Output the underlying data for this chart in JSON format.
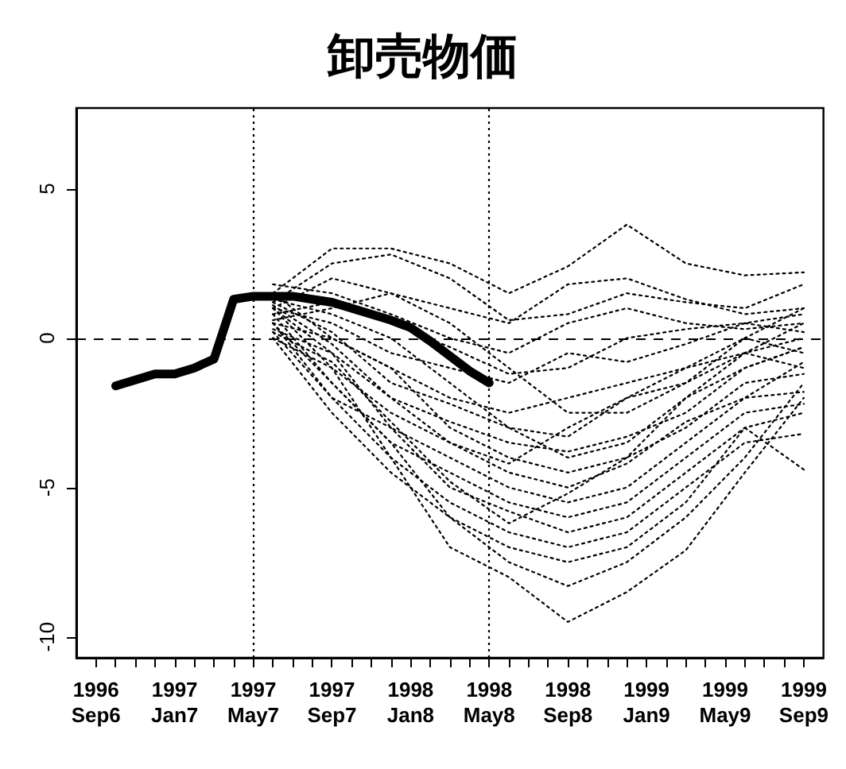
{
  "chart_data": {
    "type": "line",
    "title": "卸売物価",
    "line_style": "dotted",
    "marker": "none",
    "grid": false,
    "xlim": [
      "1996-08",
      "1999-10"
    ],
    "ylim": [
      -10.7,
      7.7
    ],
    "yticks": [
      -10,
      -5,
      0,
      5
    ],
    "xticks": [
      {
        "value": "1996-09",
        "label": "1996\nSep6"
      },
      {
        "value": "1996-10",
        "label": null
      },
      {
        "value": "1996-11",
        "label": null
      },
      {
        "value": "1996-12",
        "label": null
      },
      {
        "value": "1997-01",
        "label": "1997\nJan7"
      },
      {
        "value": "1997-02",
        "label": null
      },
      {
        "value": "1997-03",
        "label": null
      },
      {
        "value": "1997-04",
        "label": null
      },
      {
        "value": "1997-05",
        "label": "1997\nMay7"
      },
      {
        "value": "1997-06",
        "label": null
      },
      {
        "value": "1997-07",
        "label": null
      },
      {
        "value": "1997-08",
        "label": null
      },
      {
        "value": "1997-09",
        "label": "1997\nSep7"
      },
      {
        "value": "1997-10",
        "label": null
      },
      {
        "value": "1997-11",
        "label": null
      },
      {
        "value": "1997-12",
        "label": null
      },
      {
        "value": "1998-01",
        "label": "1998\nJan8"
      },
      {
        "value": "1998-02",
        "label": null
      },
      {
        "value": "1998-03",
        "label": null
      },
      {
        "value": "1998-04",
        "label": null
      },
      {
        "value": "1998-05",
        "label": "1998\nMay8"
      },
      {
        "value": "1998-06",
        "label": null
      },
      {
        "value": "1998-07",
        "label": null
      },
      {
        "value": "1998-08",
        "label": null
      },
      {
        "value": "1998-09",
        "label": "1998\nSep8"
      },
      {
        "value": "1998-10",
        "label": null
      },
      {
        "value": "1998-11",
        "label": null
      },
      {
        "value": "1998-12",
        "label": null
      },
      {
        "value": "1999-01",
        "label": "1999\nJan9"
      },
      {
        "value": "1999-02",
        "label": null
      },
      {
        "value": "1999-03",
        "label": null
      },
      {
        "value": "1999-04",
        "label": null
      },
      {
        "value": "1999-05",
        "label": "1999\nMay9"
      },
      {
        "value": "1999-06",
        "label": null
      },
      {
        "value": "1999-07",
        "label": null
      },
      {
        "value": "1999-08",
        "label": null
      },
      {
        "value": "1999-09",
        "label": "1999\nSep9"
      }
    ],
    "ref_lines": [
      {
        "axis": "x",
        "value": "1997-05",
        "line_style": "dotted"
      },
      {
        "axis": "x",
        "value": "1998-05",
        "line_style": "dotted"
      },
      {
        "axis": "y",
        "value": 0,
        "line_style": "dashed"
      }
    ],
    "series": [
      {
        "color": "#000000",
        "line_style": "solid",
        "x": [
          "1996-10",
          "1996-11",
          "1996-12",
          "1997-01",
          "1997-02",
          "1997-03",
          "1997-04",
          "1997-05",
          "1997-06",
          "1997-07",
          "1997-08",
          "1997-09",
          "1997-10",
          "1997-11",
          "1997-12",
          "1998-01",
          "1998-02",
          "1998-03",
          "1998-04",
          "1998-05"
        ],
        "values": [
          -1.6,
          -1.4,
          -1.2,
          -1.2,
          -1.0,
          -0.7,
          1.3,
          1.4,
          1.4,
          1.4,
          1.3,
          1.2,
          1.0,
          0.8,
          0.6,
          0.35,
          -0.1,
          -0.6,
          -1.1,
          -1.5
        ]
      },
      {
        "color": "#000000",
        "x": [
          "1997-06",
          "1997-09",
          "1997-12",
          "1998-03",
          "1998-06",
          "1998-09",
          "1998-12",
          "1999-03",
          "1999-06",
          "1999-09"
        ],
        "values": [
          1.5,
          3.0,
          3.0,
          2.5,
          1.5,
          2.4,
          3.8,
          2.5,
          2.1,
          2.2
        ]
      },
      {
        "color": "#000000",
        "x": [
          "1997-06",
          "1997-09",
          "1997-12",
          "1998-03",
          "1998-06",
          "1998-09",
          "1998-12",
          "1999-03",
          "1999-06",
          "1999-09"
        ],
        "values": [
          1.2,
          2.5,
          2.8,
          2.0,
          0.6,
          0.8,
          1.5,
          1.2,
          1.0,
          1.8
        ]
      },
      {
        "color": "#000000",
        "x": [
          "1997-06",
          "1997-09",
          "1997-12",
          "1998-03",
          "1998-06",
          "1998-09",
          "1998-12",
          "1999-03",
          "1999-06",
          "1999-09"
        ],
        "values": [
          1.0,
          2.0,
          1.5,
          1.0,
          0.5,
          1.8,
          2.0,
          1.3,
          0.8,
          1.0
        ]
      },
      {
        "color": "#000000",
        "x": [
          "1997-06",
          "1997-09",
          "1997-12",
          "1998-03",
          "1998-06",
          "1998-09",
          "1998-12",
          "1999-03",
          "1999-06",
          "1999-09"
        ],
        "values": [
          1.8,
          1.5,
          0.8,
          0.0,
          -0.5,
          0.5,
          1.0,
          0.5,
          0.3,
          0.5
        ]
      },
      {
        "color": "#000000",
        "x": [
          "1997-06",
          "1997-09",
          "1997-12",
          "1998-03",
          "1998-06",
          "1998-09",
          "1998-12",
          "1999-03",
          "1999-06",
          "1999-09"
        ],
        "values": [
          0.8,
          1.2,
          0.5,
          -0.3,
          -1.2,
          -1.0,
          0.0,
          0.3,
          0.5,
          0.2
        ]
      },
      {
        "color": "#000000",
        "x": [
          "1997-06",
          "1997-09",
          "1997-12",
          "1998-03",
          "1998-06",
          "1998-09",
          "1998-12",
          "1999-03",
          "1999-06",
          "1999-09"
        ],
        "values": [
          1.0,
          0.5,
          -0.5,
          -1.0,
          -1.5,
          -0.5,
          -0.8,
          -0.2,
          0.5,
          0.8
        ]
      },
      {
        "color": "#000000",
        "x": [
          "1997-06",
          "1997-09",
          "1997-12",
          "1998-03",
          "1998-06",
          "1998-09",
          "1998-12",
          "1999-03",
          "1999-06",
          "1999-09"
        ],
        "values": [
          0.5,
          0.0,
          -1.0,
          -2.0,
          -2.5,
          -2.0,
          -1.5,
          -1.0,
          0.0,
          -0.5
        ]
      },
      {
        "color": "#000000",
        "x": [
          "1997-06",
          "1997-09",
          "1997-12",
          "1998-03",
          "1998-06",
          "1998-09",
          "1998-12",
          "1999-03",
          "1999-06",
          "1999-09"
        ],
        "values": [
          1.2,
          0.2,
          -1.5,
          -2.2,
          -3.0,
          -3.3,
          -2.0,
          -1.5,
          -0.5,
          -1.0
        ]
      },
      {
        "color": "#000000",
        "x": [
          "1997-06",
          "1997-09",
          "1997-12",
          "1998-03",
          "1998-06",
          "1998-09",
          "1998-12",
          "1999-03",
          "1999-06",
          "1999-09"
        ],
        "values": [
          0.3,
          -0.5,
          -2.0,
          -2.8,
          -3.5,
          -3.8,
          -3.3,
          -2.5,
          -1.0,
          -0.3
        ]
      },
      {
        "color": "#000000",
        "x": [
          "1997-06",
          "1997-09",
          "1997-12",
          "1998-03",
          "1998-06",
          "1998-09",
          "1998-12",
          "1999-03",
          "1999-06",
          "1999-09"
        ],
        "values": [
          1.5,
          0.0,
          -1.0,
          -3.0,
          -4.0,
          -4.5,
          -4.0,
          -3.0,
          -1.5,
          -1.2
        ]
      },
      {
        "color": "#000000",
        "x": [
          "1997-06",
          "1997-09",
          "1997-12",
          "1998-03",
          "1998-06",
          "1998-09",
          "1998-12",
          "1999-03",
          "1999-06",
          "1999-09"
        ],
        "values": [
          0.0,
          -1.0,
          -2.5,
          -3.5,
          -4.5,
          -5.0,
          -4.2,
          -2.8,
          -2.0,
          -1.8
        ]
      },
      {
        "color": "#000000",
        "x": [
          "1997-06",
          "1997-09",
          "1997-12",
          "1998-03",
          "1998-06",
          "1998-09",
          "1998-12",
          "1999-03",
          "1999-06",
          "1999-09"
        ],
        "values": [
          1.0,
          -0.5,
          -3.0,
          -4.0,
          -5.0,
          -5.5,
          -5.0,
          -3.5,
          -2.0,
          -0.8
        ]
      },
      {
        "color": "#000000",
        "x": [
          "1997-06",
          "1997-09",
          "1997-12",
          "1998-03",
          "1998-06",
          "1998-09",
          "1998-12",
          "1999-03",
          "1999-06",
          "1999-09"
        ],
        "values": [
          0.5,
          -1.5,
          -3.5,
          -4.5,
          -5.5,
          -6.0,
          -5.5,
          -4.0,
          -2.5,
          -2.2
        ]
      },
      {
        "color": "#000000",
        "x": [
          "1997-06",
          "1997-09",
          "1997-12",
          "1998-03",
          "1998-06",
          "1998-09",
          "1998-12",
          "1999-03",
          "1999-06",
          "1999-09"
        ],
        "values": [
          0.2,
          -2.0,
          -3.0,
          -5.0,
          -5.8,
          -6.5,
          -6.0,
          -4.5,
          -3.0,
          -2.5
        ]
      },
      {
        "color": "#000000",
        "x": [
          "1997-06",
          "1997-09",
          "1997-12",
          "1998-03",
          "1998-06",
          "1998-09",
          "1998-12",
          "1999-03",
          "1999-06",
          "1999-09"
        ],
        "values": [
          1.0,
          -1.0,
          -4.0,
          -5.5,
          -6.5,
          -7.0,
          -6.5,
          -5.0,
          -3.5,
          -3.2
        ]
      },
      {
        "color": "#000000",
        "x": [
          "1997-06",
          "1997-09",
          "1997-12",
          "1998-03",
          "1998-06",
          "1998-09",
          "1998-12",
          "1999-03",
          "1999-06",
          "1999-09"
        ],
        "values": [
          0.0,
          -2.5,
          -4.5,
          -6.0,
          -7.0,
          -7.5,
          -7.0,
          -5.5,
          -3.0,
          -4.4
        ]
      },
      {
        "color": "#000000",
        "x": [
          "1997-06",
          "1997-09",
          "1997-12",
          "1998-03",
          "1998-06",
          "1998-09",
          "1998-12",
          "1999-03",
          "1999-06",
          "1999-09"
        ],
        "values": [
          0.5,
          -2.0,
          -4.0,
          -7.0,
          -8.0,
          -9.5,
          -8.5,
          -7.1,
          -4.5,
          -2.0
        ]
      },
      {
        "color": "#000000",
        "x": [
          "1997-06",
          "1997-09",
          "1997-12",
          "1998-03",
          "1998-06",
          "1998-09",
          "1998-12",
          "1999-03",
          "1999-06",
          "1999-09"
        ],
        "values": [
          0.8,
          -1.5,
          -3.5,
          -6.0,
          -7.5,
          -8.3,
          -7.5,
          -6.0,
          -4.0,
          -1.5
        ]
      },
      {
        "color": "#000000",
        "x": [
          "1997-06",
          "1997-09",
          "1997-12",
          "1998-03",
          "1998-06",
          "1998-09",
          "1998-12",
          "1999-03",
          "1999-06",
          "1999-09"
        ],
        "values": [
          1.3,
          0.8,
          0.0,
          -1.5,
          -3.0,
          -4.0,
          -3.5,
          -2.0,
          -0.5,
          0.5
        ]
      },
      {
        "color": "#000000",
        "x": [
          "1997-06",
          "1997-09",
          "1997-12",
          "1998-03",
          "1998-06",
          "1998-09",
          "1998-12",
          "1999-03",
          "1999-06",
          "1999-09"
        ],
        "values": [
          0.6,
          1.0,
          1.5,
          0.5,
          -1.0,
          -2.5,
          -2.5,
          -1.5,
          0.0,
          1.0
        ]
      },
      {
        "color": "#000000",
        "x": [
          "1997-06",
          "1997-09",
          "1997-12",
          "1998-03",
          "1998-06",
          "1998-09",
          "1998-12",
          "1999-03",
          "1999-06",
          "1999-09"
        ],
        "values": [
          1.1,
          -0.2,
          -2.0,
          -3.5,
          -4.2,
          -3.0,
          -2.0,
          -1.0,
          -0.5,
          0.0
        ]
      },
      {
        "color": "#000000",
        "x": [
          "1997-06",
          "1997-09",
          "1997-12",
          "1998-03",
          "1998-06",
          "1998-09",
          "1998-12",
          "1999-03",
          "1999-06",
          "1999-09"
        ],
        "values": [
          0.2,
          -0.8,
          -2.8,
          -4.8,
          -6.2,
          -5.2,
          -4.0,
          -2.0,
          -1.0,
          -0.3
        ]
      }
    ]
  }
}
